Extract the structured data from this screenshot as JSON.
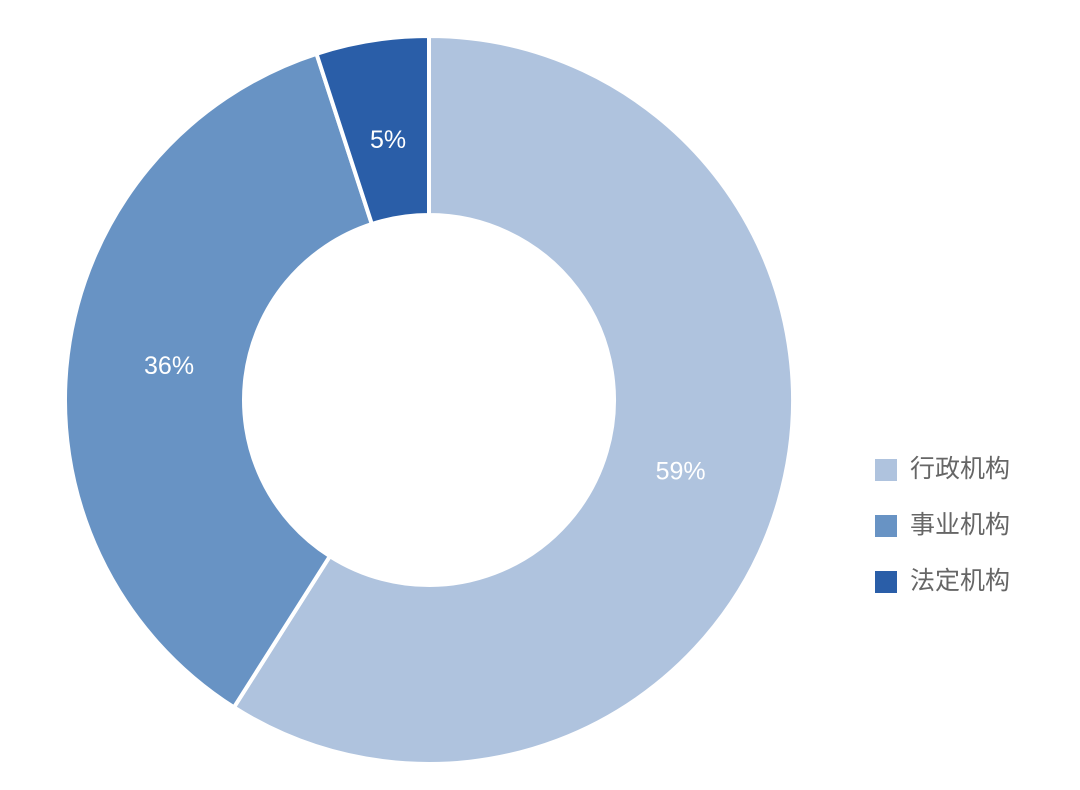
{
  "chart_data": {
    "type": "donut",
    "categories": [
      "行政机构",
      "事业机构",
      "法定机构"
    ],
    "values": [
      59,
      36,
      5
    ],
    "value_labels": [
      "59%",
      "36%",
      "5%"
    ],
    "colors": [
      "#afc3de",
      "#6893c4",
      "#2a5ea8"
    ],
    "legend": "right"
  }
}
